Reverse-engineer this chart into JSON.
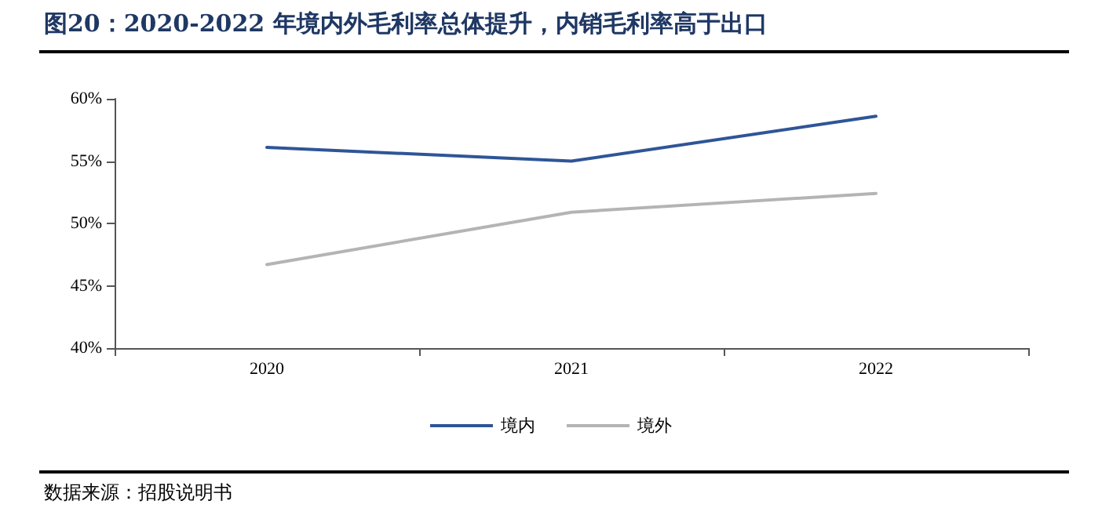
{
  "chart_data": {
    "type": "line",
    "title": "图20：2020-2022 年境内外毛利率总体提升，内销毛利率高于出口",
    "categories": [
      "2020",
      "2021",
      "2022"
    ],
    "series": [
      {
        "name": "境内",
        "color": "#2f5597",
        "values": [
          56.1,
          55.0,
          58.6
        ]
      },
      {
        "name": "境外",
        "color": "#b4b4b4",
        "values": [
          46.7,
          50.9,
          52.4
        ]
      }
    ],
    "ylim": [
      40,
      60
    ],
    "yticks": [
      {
        "value": 40,
        "label": "40%"
      },
      {
        "value": 45,
        "label": "45%"
      },
      {
        "value": 50,
        "label": "50%"
      },
      {
        "value": 55,
        "label": "55%"
      },
      {
        "value": 60,
        "label": "60%"
      }
    ],
    "grid": false,
    "legend": "bottom",
    "marker": "none",
    "line_style": "solid",
    "annotations": [
      "数据来源：招股说明书"
    ]
  }
}
